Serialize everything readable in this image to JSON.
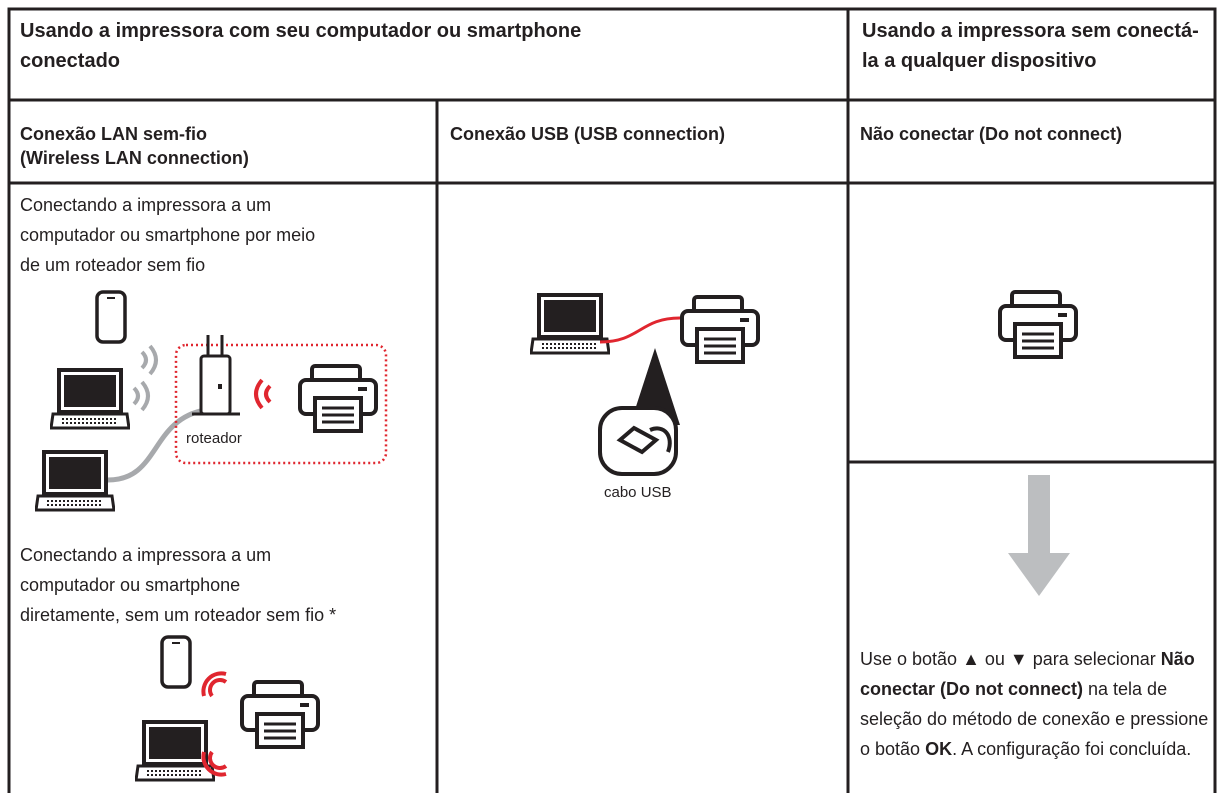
{
  "header": {
    "left": "Usando a impressora com seu computador ou smartphone conectado",
    "right": "Usando a impressora sem conectá-la a qualquer dispositivo"
  },
  "columns": [
    {
      "title": "Conexão LAN sem-fio",
      "subtitle": "(Wireless LAN connection)"
    },
    {
      "title": "Conexão USB (USB connection)"
    },
    {
      "title": "Não conectar (Do not connect)"
    }
  ],
  "wireless": {
    "router_text": [
      "Conectando a impressora a um",
      "computador ou smartphone por meio",
      "de um roteador sem fio"
    ],
    "router_label": "roteador",
    "direct_text": [
      "Conectando a impressora a um",
      "computador ou smartphone",
      "diretamente, sem um roteador sem fio *"
    ]
  },
  "usb": {
    "cable_label": "cabo USB"
  },
  "no_connection": {
    "instruction": [
      {
        "text": "Use o botão ▲ ou ▼ para selecionar ",
        "bold": false
      },
      {
        "text": "Não conectar (Do not connect)",
        "bold": true
      },
      {
        "text": " na tela de seleção do método de conexão e pressione o botão ",
        "bold": false
      },
      {
        "text": "OK",
        "bold": true
      },
      {
        "text": ". A configuração foi concluída.",
        "bold": false
      }
    ]
  }
}
